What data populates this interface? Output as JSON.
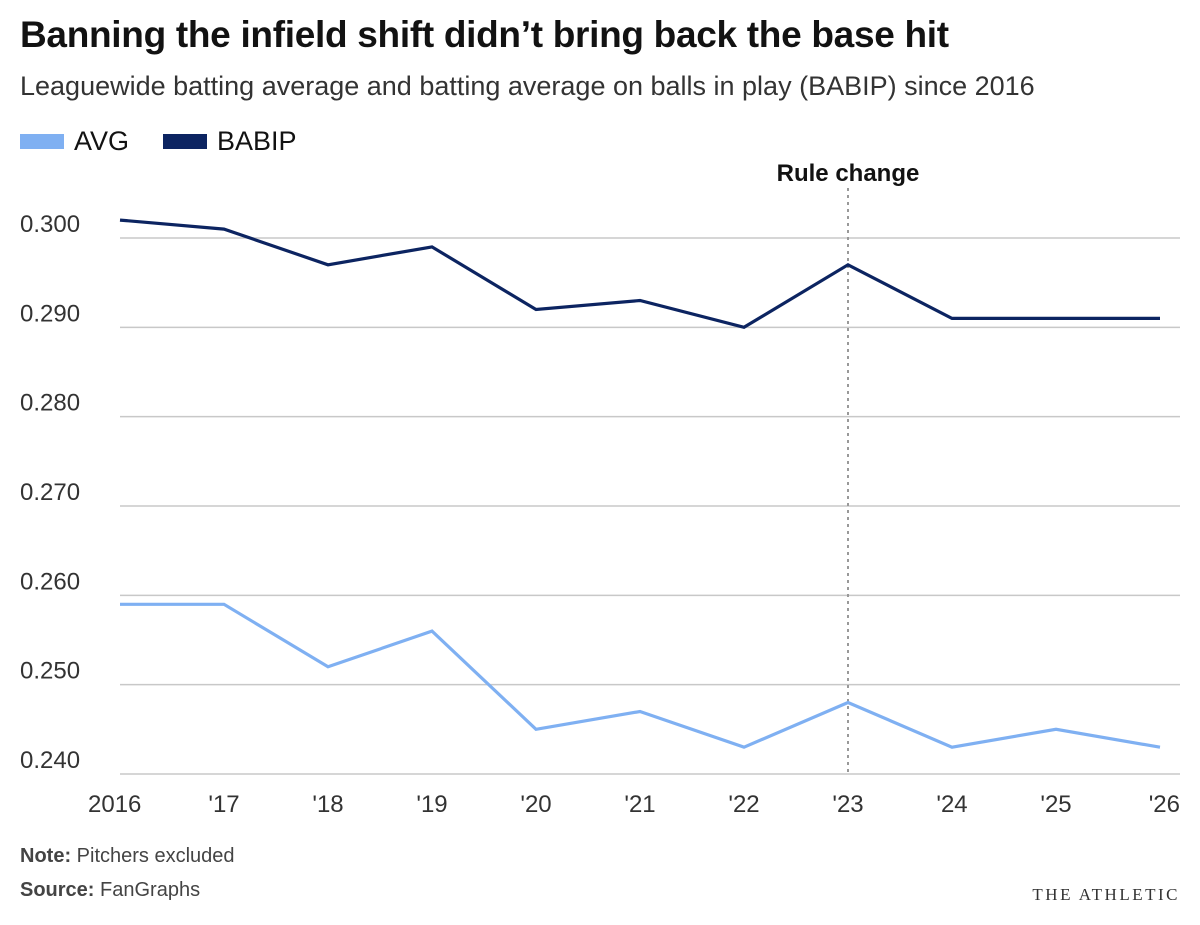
{
  "title": "Banning the infield shift didn’t bring back the base hit",
  "subtitle": "Leaguewide batting average and batting average on balls in play (BABIP) since 2016",
  "note": {
    "label": "Note:",
    "text": "Pitchers excluded"
  },
  "source": {
    "label": "Source:",
    "text": "FanGraphs"
  },
  "brand": "THE ATHLETIC",
  "colors": {
    "avg": "#7fb0f2",
    "babip": "#0c2461",
    "grid": "#c8c8c8",
    "annotation_line": "#999999"
  },
  "chart_data": {
    "type": "line",
    "x": [
      2016,
      2017,
      2018,
      2019,
      2020,
      2021,
      2022,
      2023,
      2024,
      2025,
      2026
    ],
    "x_tick_labels": [
      "2016",
      "'17",
      "'18",
      "'19",
      "'20",
      "'21",
      "'22",
      "'23",
      "'24",
      "'25",
      "'26"
    ],
    "y_ticks": [
      0.24,
      0.25,
      0.26,
      0.27,
      0.28,
      0.29,
      0.3
    ],
    "y_tick_labels": [
      "0.240",
      "0.250",
      "0.260",
      "0.270",
      "0.280",
      "0.290",
      "0.300"
    ],
    "ylim": [
      0.24,
      0.304
    ],
    "xlabel": "",
    "ylabel": "",
    "grid": true,
    "legend_position": "top-left",
    "series": [
      {
        "name": "AVG",
        "color": "#7fb0f2",
        "values": [
          0.259,
          0.259,
          0.252,
          0.256,
          0.245,
          0.247,
          0.243,
          0.248,
          0.243,
          0.245,
          0.243
        ]
      },
      {
        "name": "BABIP",
        "color": "#0c2461",
        "values": [
          0.302,
          0.301,
          0.297,
          0.299,
          0.292,
          0.293,
          0.29,
          0.297,
          0.291,
          0.291,
          0.291
        ]
      }
    ],
    "annotations": [
      {
        "x": 2023,
        "label": "Rule change",
        "style": "dotted-vertical-line"
      }
    ]
  }
}
